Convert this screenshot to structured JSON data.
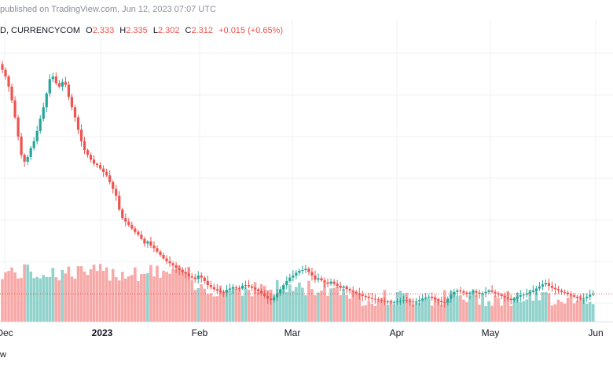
{
  "header": {
    "published": "published on TradingView.com, Jun 12, 2023 07:07 UTC",
    "symbol": "D, CURRENCYCOM",
    "o_label": "O",
    "o_value": "2.333",
    "h_label": "H",
    "h_value": "2.335",
    "l_label": "L",
    "l_value": "2.302",
    "c_label": "C",
    "c_value": "2.312",
    "change": "+0.015 (+0.65%)"
  },
  "footer": {
    "text": "w"
  },
  "colors": {
    "up": "#26a69a",
    "down": "#ef5350",
    "up_volume": "#92d2cc",
    "down_volume": "#f7a9a7",
    "grid": "#eef0f3",
    "last_price_line": "#ef5350"
  },
  "chart_data": {
    "type": "candlestick",
    "x_axis_labels": [
      "Dec",
      "2023",
      "Feb",
      "Mar",
      "Apr",
      "May",
      "Jun"
    ],
    "ylim": [
      1.9,
      6.0
    ],
    "last_close": 2.312,
    "grid": true,
    "closes": [
      5.6,
      5.5,
      5.35,
      5.15,
      4.9,
      4.62,
      4.35,
      4.25,
      4.32,
      4.45,
      4.55,
      4.7,
      4.88,
      5.05,
      5.25,
      5.46,
      5.5,
      5.4,
      5.35,
      5.42,
      5.38,
      5.2,
      5.05,
      4.9,
      4.72,
      4.55,
      4.42,
      4.35,
      4.28,
      4.22,
      4.2,
      4.15,
      4.1,
      4.05,
      3.95,
      3.85,
      3.75,
      3.55,
      3.42,
      3.37,
      3.32,
      3.27,
      3.22,
      3.18,
      3.12,
      3.05,
      3.08,
      3.02,
      2.98,
      2.93,
      2.88,
      2.83,
      2.79,
      2.76,
      2.73,
      2.69,
      2.66,
      2.63,
      2.61,
      2.57,
      2.55,
      2.53,
      2.58,
      2.55,
      2.5,
      2.44,
      2.41,
      2.38,
      2.36,
      2.34,
      2.33,
      2.37,
      2.39,
      2.41,
      2.4,
      2.39,
      2.43,
      2.44,
      2.42,
      2.4,
      2.38,
      2.35,
      2.32,
      2.28,
      2.24,
      2.22,
      2.26,
      2.32,
      2.38,
      2.44,
      2.5,
      2.55,
      2.58,
      2.62,
      2.65,
      2.66,
      2.68,
      2.63,
      2.58,
      2.52,
      2.54,
      2.51,
      2.48,
      2.46,
      2.49,
      2.46,
      2.43,
      2.4,
      2.42,
      2.38,
      2.36,
      2.34,
      2.32,
      2.3,
      2.28,
      2.27,
      2.25,
      2.24,
      2.23,
      2.22,
      2.21,
      2.2,
      2.2,
      2.19,
      2.19,
      2.2,
      2.21,
      2.22,
      2.21,
      2.2,
      2.19,
      2.2,
      2.22,
      2.24,
      2.26,
      2.27,
      2.25,
      2.23,
      2.21,
      2.19,
      2.18,
      2.24,
      2.3,
      2.34,
      2.36,
      2.35,
      2.33,
      2.31,
      2.33,
      2.35,
      2.33,
      2.31,
      2.32,
      2.34,
      2.36,
      2.34,
      2.32,
      2.3,
      2.28,
      2.26,
      2.24,
      2.22,
      2.24,
      2.27,
      2.29,
      2.3,
      2.32,
      2.34,
      2.36,
      2.39,
      2.42,
      2.45,
      2.47,
      2.43,
      2.4,
      2.38,
      2.36,
      2.34,
      2.33,
      2.31,
      2.29,
      2.27,
      2.25,
      2.24,
      2.25,
      2.27,
      2.3,
      2.312
    ]
  }
}
